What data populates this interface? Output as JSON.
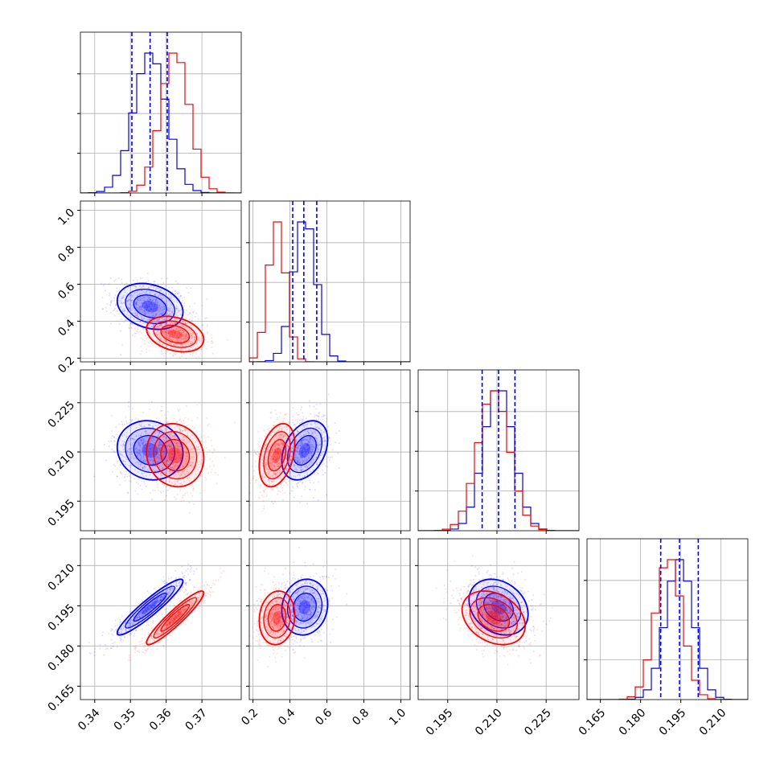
{
  "chart_data": {
    "type": "corner",
    "parameters": 4,
    "colors": {
      "series_a": "#0000ff",
      "series_b": "#ff0000",
      "quantile_lines": "#0000ff"
    },
    "grid": true,
    "params": [
      {
        "range": [
          0.336,
          0.381
        ],
        "ticks": [
          0.34,
          0.35,
          0.36,
          0.37
        ],
        "tick_labels": [
          "0.34",
          "0.35",
          "0.36",
          "0.37"
        ],
        "quantiles": [
          0.3504,
          0.3555,
          0.3603
        ],
        "series": [
          {
            "mean": 0.3555,
            "sd": 0.0046
          },
          {
            "mean": 0.3625,
            "sd": 0.004
          }
        ]
      },
      {
        "range": [
          0.18,
          1.05
        ],
        "ticks": [
          0.2,
          0.4,
          0.6,
          0.8,
          1.0
        ],
        "tick_labels": [
          "0.2",
          "0.4",
          "0.6",
          "0.8",
          "1.0"
        ],
        "quantiles": [
          0.415,
          0.475,
          0.545
        ],
        "series": [
          {
            "mean": 0.48,
            "sd": 0.062
          },
          {
            "mean": 0.33,
            "sd": 0.048
          }
        ]
      },
      {
        "range": [
          0.186,
          0.235
        ],
        "ticks": [
          0.195,
          0.21,
          0.225
        ],
        "tick_labels": [
          "0.195",
          "0.210",
          "0.225"
        ],
        "quantiles": [
          0.2055,
          0.2105,
          0.2155
        ],
        "series": [
          {
            "mean": 0.2105,
            "sd": 0.0045
          },
          {
            "mean": 0.209,
            "sd": 0.0048
          }
        ]
      },
      {
        "range": [
          0.16,
          0.22
        ],
        "ticks": [
          0.165,
          0.18,
          0.195,
          0.21
        ],
        "tick_labels": [
          "0.165",
          "0.180",
          "0.195",
          "0.210"
        ],
        "quantiles": [
          0.1875,
          0.1945,
          0.2015
        ],
        "series": [
          {
            "mean": 0.1945,
            "sd": 0.0052
          },
          {
            "mean": 0.1905,
            "sd": 0.005
          }
        ]
      }
    ],
    "pairs": [
      {
        "row": 1,
        "col": 0,
        "series": [
          {
            "mean": [
              0.3555,
              0.48
            ],
            "sd": [
              0.0046,
              0.062
            ],
            "rho": -0.25
          },
          {
            "mean": [
              0.3625,
              0.33
            ],
            "sd": [
              0.004,
              0.048
            ],
            "rho": -0.3
          }
        ]
      },
      {
        "row": 2,
        "col": 0,
        "series": [
          {
            "mean": [
              0.3555,
              0.2105
            ],
            "sd": [
              0.0046,
              0.0045
            ],
            "rho": -0.1
          },
          {
            "mean": [
              0.3625,
              0.209
            ],
            "sd": [
              0.004,
              0.0048
            ],
            "rho": -0.1
          }
        ]
      },
      {
        "row": 2,
        "col": 1,
        "series": [
          {
            "mean": [
              0.48,
              0.2105
            ],
            "sd": [
              0.062,
              0.0045
            ],
            "rho": 0.35
          },
          {
            "mean": [
              0.33,
              0.209
            ],
            "sd": [
              0.048,
              0.0048
            ],
            "rho": 0.35
          }
        ]
      },
      {
        "row": 3,
        "col": 0,
        "series": [
          {
            "mean": [
              0.3555,
              0.1945
            ],
            "sd": [
              0.0046,
              0.0052
            ],
            "rho": 0.93
          },
          {
            "mean": [
              0.3625,
              0.1905
            ],
            "sd": [
              0.004,
              0.005
            ],
            "rho": 0.93
          }
        ]
      },
      {
        "row": 3,
        "col": 1,
        "series": [
          {
            "mean": [
              0.48,
              0.1945
            ],
            "sd": [
              0.062,
              0.0052
            ],
            "rho": 0.1
          },
          {
            "mean": [
              0.33,
              0.1905
            ],
            "sd": [
              0.048,
              0.005
            ],
            "rho": 0.1
          }
        ]
      },
      {
        "row": 3,
        "col": 2,
        "series": [
          {
            "mean": [
              0.2105,
              0.1945
            ],
            "sd": [
              0.0045,
              0.0052
            ],
            "rho": -0.25
          },
          {
            "mean": [
              0.209,
              0.1905
            ],
            "sd": [
              0.0048,
              0.005
            ],
            "rho": -0.3
          }
        ]
      }
    ]
  }
}
